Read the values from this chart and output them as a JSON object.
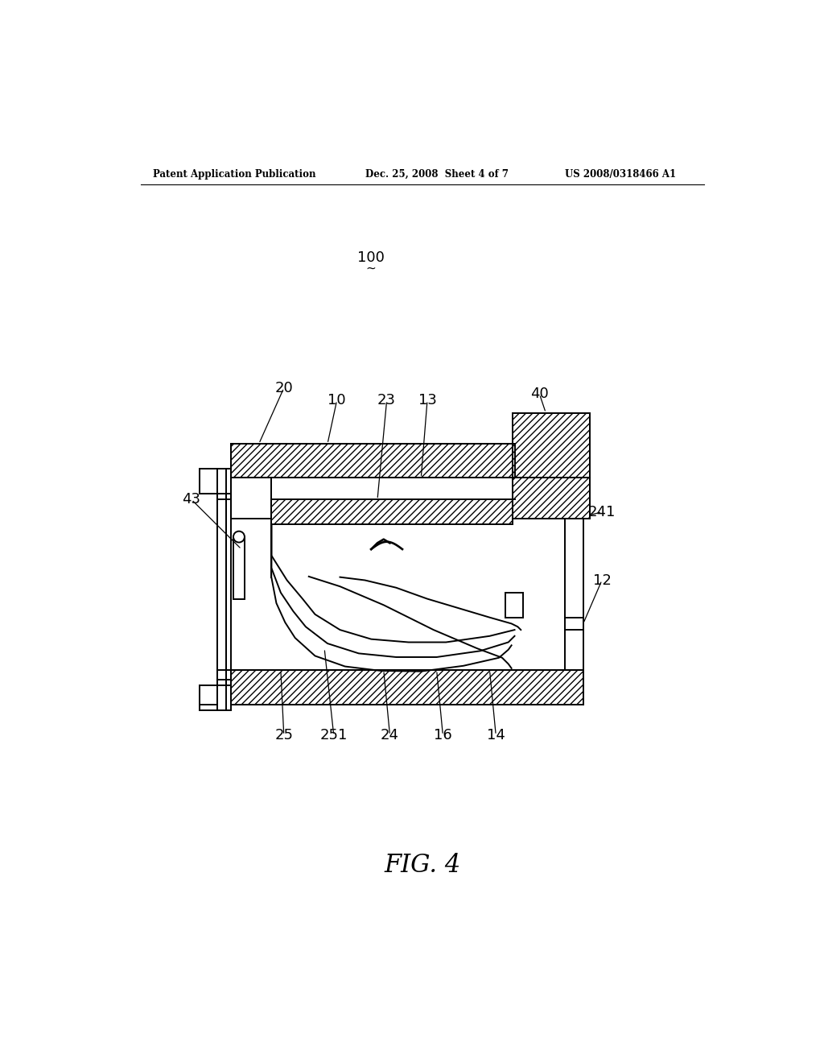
{
  "background_color": "#ffffff",
  "header_left": "Patent Application Publication",
  "header_mid": "Dec. 25, 2008  Sheet 4 of 7",
  "header_right": "US 2008/0318466 A1",
  "fig_label": "FIG. 4",
  "ref_num": "100"
}
